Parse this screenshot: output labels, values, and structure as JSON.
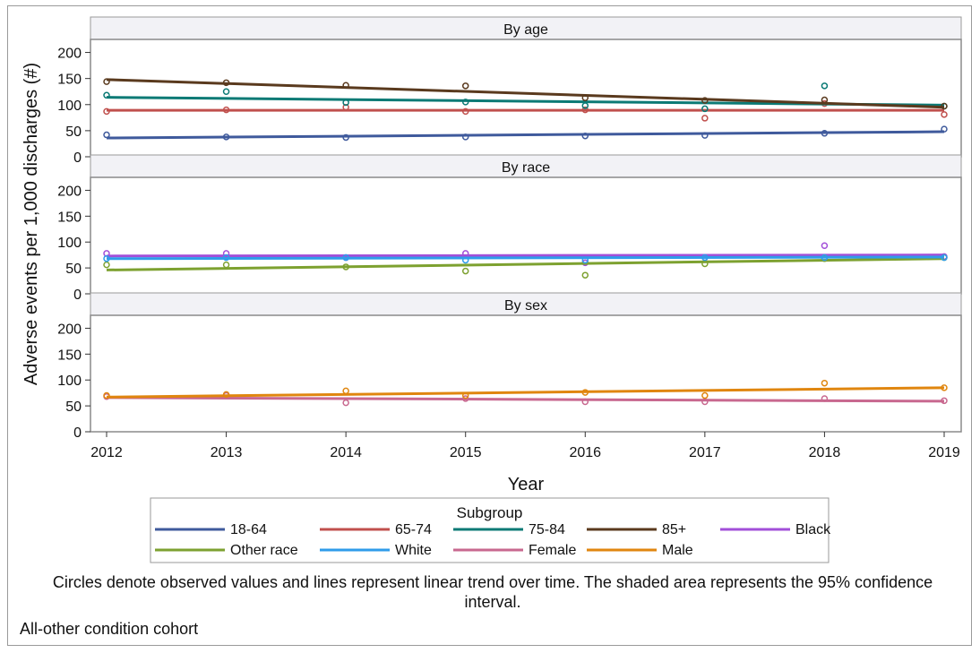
{
  "chart_data": {
    "type": "scatter",
    "ylabel": "Adverse events per 1,000 discharges (#)",
    "xlabel": "Year",
    "x": [
      2012,
      2013,
      2014,
      2015,
      2016,
      2017,
      2018,
      2019
    ],
    "ylim": [
      0,
      225
    ],
    "yticks": [
      0,
      50,
      100,
      150,
      200
    ],
    "legend_title": "Subgroup",
    "legend_position": "bottom",
    "panels": [
      {
        "title": "By age",
        "series": [
          {
            "name": "18-64",
            "color": "#3f5a9c",
            "observed": [
              42,
              38,
              37,
              38,
              40,
              41,
              45,
              53
            ],
            "trend": [
              36,
              48
            ]
          },
          {
            "name": "65-74",
            "color": "#c0504d",
            "observed": [
              87,
              90,
              95,
              87,
              90,
              74,
              102,
              81
            ],
            "trend": [
              89,
              89
            ]
          },
          {
            "name": "75-84",
            "color": "#0b7a75",
            "observed": [
              118,
              125,
              104,
              105,
              98,
              92,
              136,
              97
            ],
            "trend": [
              114,
              99
            ]
          },
          {
            "name": "85+",
            "color": "#5a3a1e",
            "observed": [
              144,
              142,
              137,
              136,
              113,
              108,
              109,
              97
            ],
            "trend": [
              148,
              95
            ]
          }
        ]
      },
      {
        "title": "By race",
        "series": [
          {
            "name": "Black",
            "color": "#a24fd8",
            "observed": [
              78,
              78,
              70,
              78,
              60,
              70,
              93,
              72
            ],
            "trend": [
              73,
              75
            ]
          },
          {
            "name": "Other race",
            "color": "#7da130",
            "observed": [
              56,
              56,
              52,
              44,
              36,
              58,
              68,
              70
            ],
            "trend": [
              46,
              68
            ]
          },
          {
            "name": "White",
            "color": "#2f9cea",
            "observed": [
              68,
              70,
              70,
              65,
              65,
              70,
              70,
              70
            ],
            "trend": [
              68,
              71
            ]
          }
        ]
      },
      {
        "title": "By sex",
        "series": [
          {
            "name": "Female",
            "color": "#c8688f",
            "observed": [
              68,
              70,
              56,
              64,
              58,
              58,
              64,
              60
            ],
            "trend": [
              66,
              59
            ]
          },
          {
            "name": "Male",
            "color": "#e0860f",
            "observed": [
              70,
              72,
              79,
              70,
              76,
              70,
              94,
              85
            ],
            "trend": [
              67,
              85
            ]
          }
        ]
      }
    ],
    "legend": [
      "18-64",
      "65-74",
      "75-84",
      "85+",
      "Black",
      "Other race",
      "White",
      "Female",
      "Male"
    ]
  },
  "footnote": "Circles denote observed values and lines represent linear trend over time. The shaded area represents the 95% confidence interval.",
  "cohort_label": "All-other condition cohort"
}
